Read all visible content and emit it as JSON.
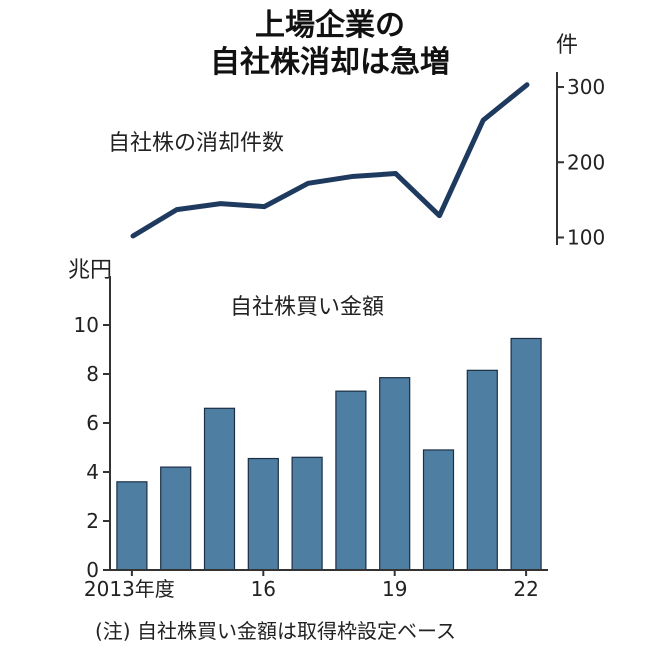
{
  "title_lines": [
    "上場企業の",
    "自社株消却は急増"
  ],
  "footnote": "(注) 自社株買い金額は取得枠設定ベース",
  "colors": {
    "line": "#1f3a5f",
    "bar": "#4f7ea3",
    "bar_edge": "#1b2e44",
    "axis": "#333333"
  },
  "chart_data": [
    {
      "type": "line",
      "title": "自社株の消却件数",
      "ylabel": "件",
      "ylim": [
        90,
        320
      ],
      "yticks": [
        100,
        200,
        300
      ],
      "x": [
        2013,
        2014,
        2015,
        2016,
        2017,
        2018,
        2019,
        2020,
        2021,
        2022
      ],
      "series": [
        {
          "values": [
            102,
            137,
            145,
            141,
            172,
            181,
            185,
            129,
            256,
            303
          ]
        }
      ]
    },
    {
      "type": "bar",
      "title": "自社株買い金額",
      "ylabel": "兆円",
      "ylim": [
        0,
        12
      ],
      "yticks": [
        0,
        2,
        4,
        6,
        8,
        10
      ],
      "categories": [
        "2013",
        "2014",
        "2015",
        "2016",
        "2017",
        "2018",
        "2019",
        "2020",
        "2021",
        "2022"
      ],
      "values": [
        3.6,
        4.2,
        6.6,
        4.55,
        4.6,
        7.3,
        7.85,
        4.9,
        8.15,
        9.45
      ],
      "xtick_labels": [
        {
          "index": 0,
          "text": "2013年度"
        },
        {
          "index": 3,
          "text": "16"
        },
        {
          "index": 6,
          "text": "19"
        },
        {
          "index": 9,
          "text": "22"
        }
      ]
    }
  ]
}
